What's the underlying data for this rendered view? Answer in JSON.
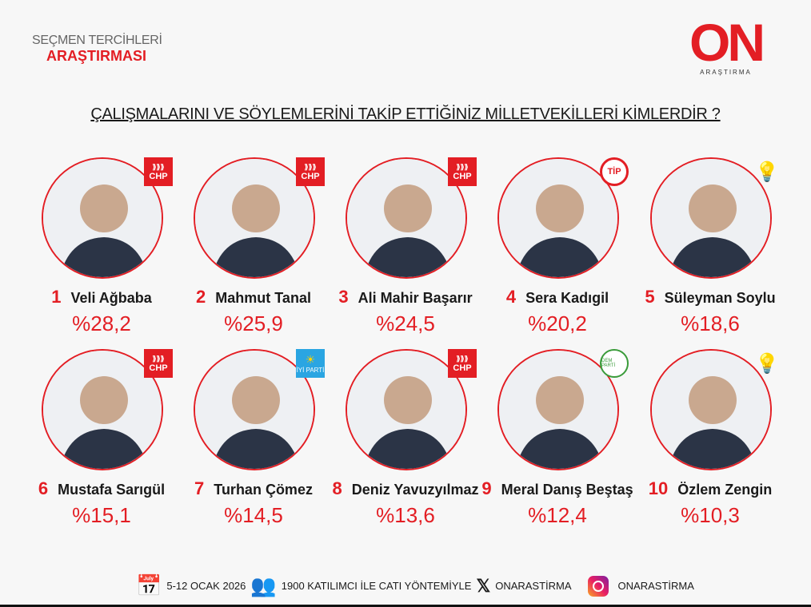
{
  "header": {
    "line1": "SEÇMEN TERCİHLERİ",
    "line2": "ARAŞTIRMASI"
  },
  "logo": {
    "main": "ON",
    "sub": "ARAŞTIRMA"
  },
  "title": "ÇALIŞMALARINI VE SÖYLEMLERİNİ TAKİP ETTİĞİNİZ MİLLETVEKİLLERİ KİMLERDİR ?",
  "colors": {
    "accent": "#e31e24"
  },
  "candidates": [
    {
      "rank": "1",
      "name": "Veli Ağbaba",
      "pct": "%28,2",
      "value": 28.2,
      "party": "CHP",
      "badge": "chp"
    },
    {
      "rank": "2",
      "name": "Mahmut Tanal",
      "pct": "%25,9",
      "value": 25.9,
      "party": "CHP",
      "badge": "chp"
    },
    {
      "rank": "3",
      "name": "Ali Mahir Başarır",
      "pct": "%24,5",
      "value": 24.5,
      "party": "CHP",
      "badge": "chp"
    },
    {
      "rank": "4",
      "name": "Sera Kadıgil",
      "pct": "%20,2",
      "value": 20.2,
      "party": "TİP",
      "badge": "tip"
    },
    {
      "rank": "5",
      "name": "Süleyman Soylu",
      "pct": "%18,6",
      "value": 18.6,
      "party": "",
      "badge": "akp"
    },
    {
      "rank": "6",
      "name": "Mustafa Sarıgül",
      "pct": "%15,1",
      "value": 15.1,
      "party": "CHP",
      "badge": "chp"
    },
    {
      "rank": "7",
      "name": "Turhan Çömez",
      "pct": "%14,5",
      "value": 14.5,
      "party": "İYİ PARTİ",
      "badge": "iyi"
    },
    {
      "rank": "8",
      "name": "Deniz Yavuzyılmaz",
      "pct": "%13,6",
      "value": 13.6,
      "party": "CHP",
      "badge": "chp"
    },
    {
      "rank": "9",
      "name": "Meral Danış Beştaş",
      "pct": "%12,4",
      "value": 12.4,
      "party": "DEM PARTİ",
      "badge": "dem"
    },
    {
      "rank": "10",
      "name": "Özlem Zengin",
      "pct": "%10,3",
      "value": 10.3,
      "party": "",
      "badge": "akp"
    }
  ],
  "footer": {
    "date": "5-12 OCAK 2026",
    "method": "1900 KATILIMCI İLE CATI YÖNTEMİYLE",
    "x_handle": "ONARASTİRMA",
    "ig_handle": "ONARASTİRMA"
  }
}
